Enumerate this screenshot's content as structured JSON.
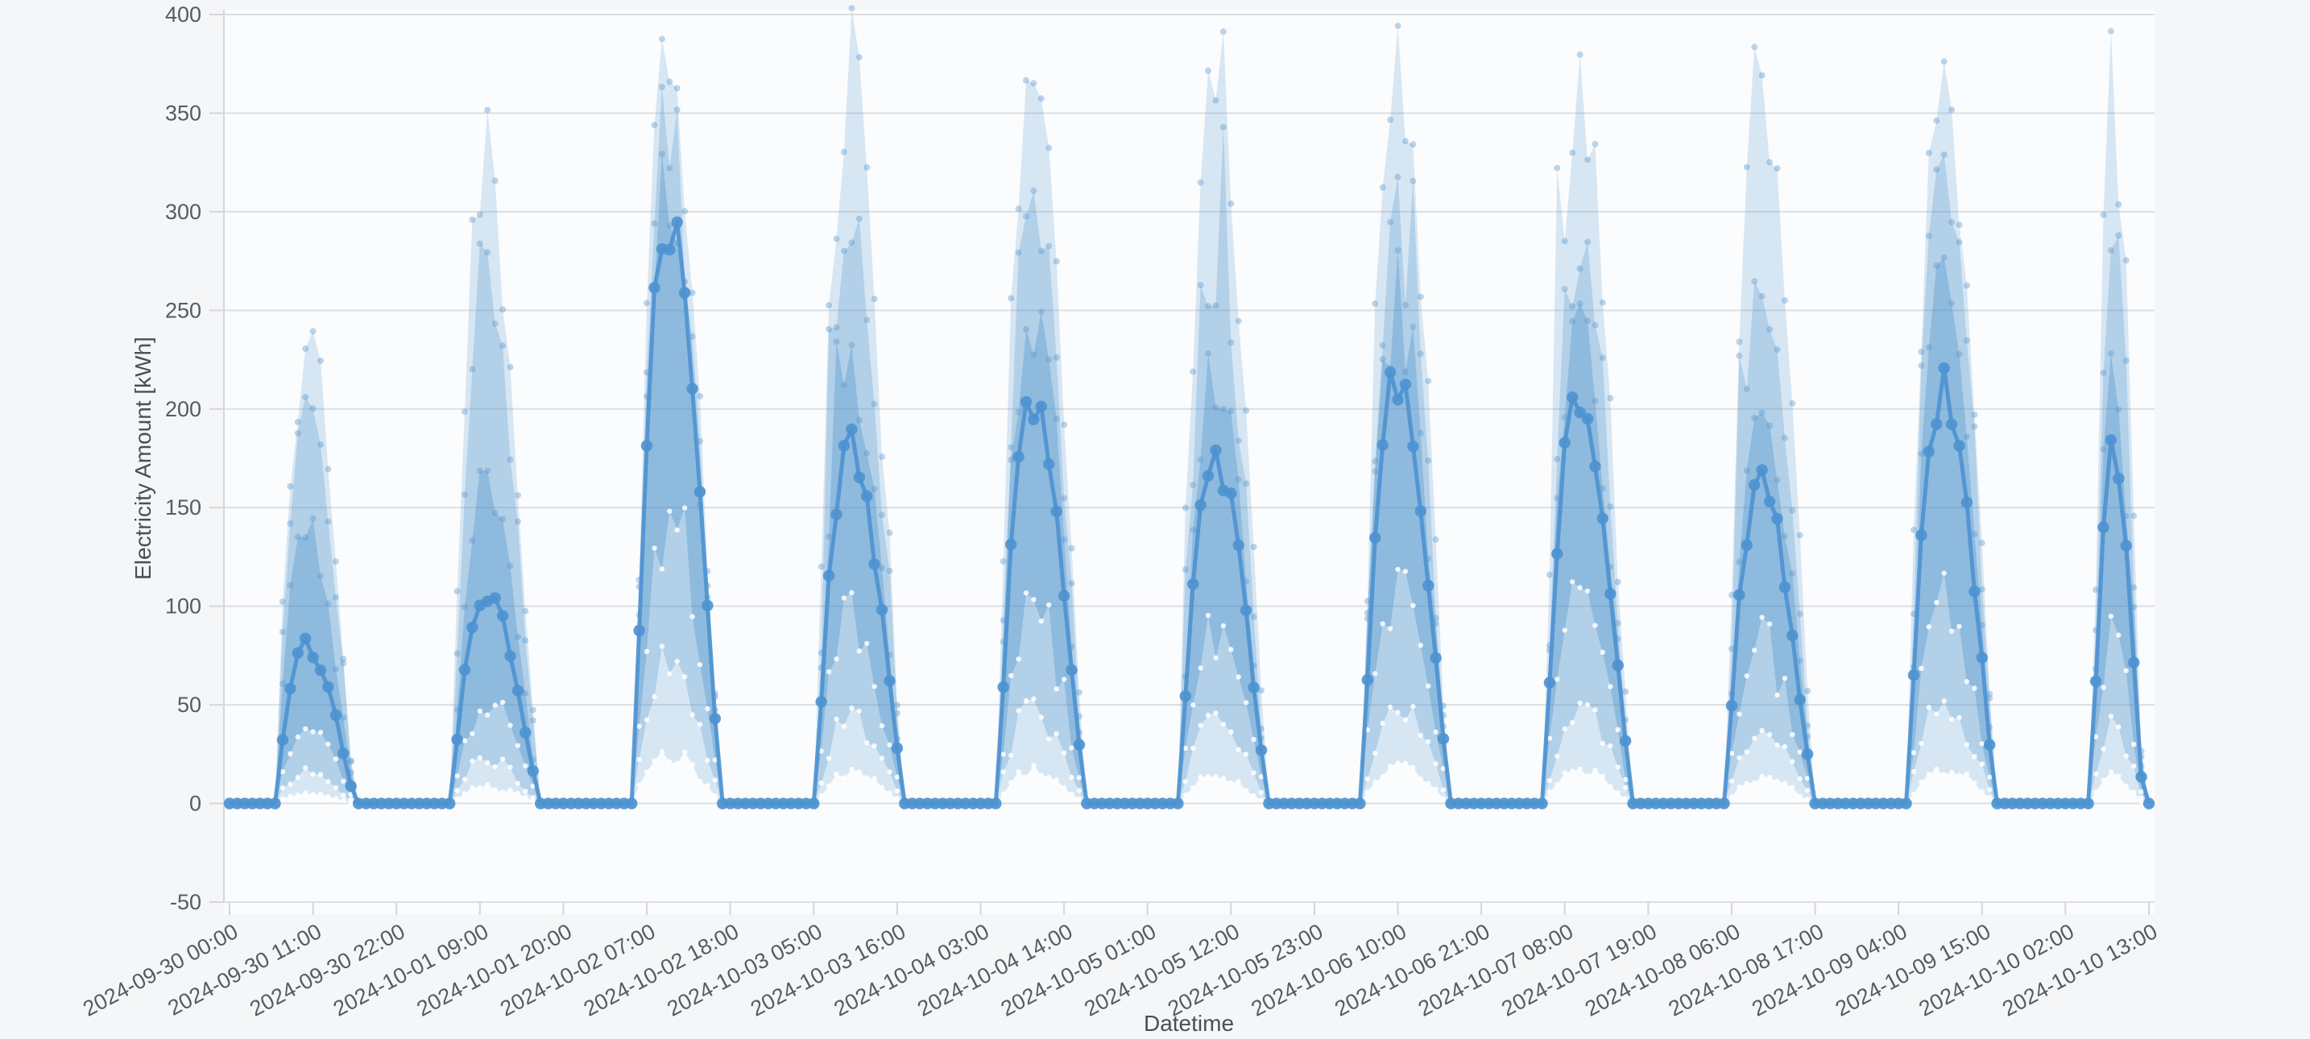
{
  "chart_data": {
    "type": "line",
    "title": "",
    "xlabel": "Datetime",
    "ylabel": "Electricity Amount [kWh]",
    "legend": "none",
    "grid": true,
    "ylim": [
      -50,
      400
    ],
    "y_ticks": [
      400,
      350,
      300,
      250,
      200,
      150,
      100,
      50,
      0,
      -50
    ],
    "x_start": "2024-09-30 00:00",
    "x_end": "2024-10-10 13:00",
    "sampling_hours": 1,
    "hours_total": 253,
    "x_tick_interval_hours": 11,
    "x_tick_labels": [
      "2024-09-30 00:00",
      "2024-09-30 11:00",
      "2024-09-30 22:00",
      "2024-10-01 09:00",
      "2024-10-01 20:00",
      "2024-10-02 07:00",
      "2024-10-02 18:00",
      "2024-10-03 05:00",
      "2024-10-03 16:00",
      "2024-10-04 03:00",
      "2024-10-04 14:00",
      "2024-10-05 01:00",
      "2024-10-05 12:00",
      "2024-10-05 23:00",
      "2024-10-06 10:00",
      "2024-10-06 21:00",
      "2024-10-07 08:00",
      "2024-10-07 19:00",
      "2024-10-08 06:00",
      "2024-10-08 17:00",
      "2024-10-09 04:00",
      "2024-10-09 15:00",
      "2024-10-10 02:00",
      "2024-10-10 13:00"
    ],
    "series_structure": {
      "main": "observed electricity amount, line with round markers, hourly",
      "bands": "three nested uncertainty bands (outer/middle/inner), dotted edges, zero at night"
    },
    "days": [
      {
        "date": "2024-09-30",
        "main": 80,
        "band_tops": [
          232,
          215,
          142
        ],
        "band_bottoms": [
          5,
          16,
          40
        ],
        "window": [
          6.2,
          16.6
        ]
      },
      {
        "date": "2024-10-01",
        "main": 105,
        "band_tops": [
          323,
          268,
          168
        ],
        "band_bottoms": [
          8,
          22,
          52
        ],
        "window": [
          5.4,
          16.9
        ]
      },
      {
        "date": "2024-10-02",
        "main": 297,
        "band_tops": [
          378,
          345,
          312
        ],
        "band_bottoms": [
          26,
          70,
          150
        ],
        "window": [
          5.4,
          16.9
        ]
      },
      {
        "date": "2024-10-03",
        "main": 180,
        "band_tops": [
          370,
          283,
          228
        ],
        "band_bottoms": [
          15,
          42,
          90
        ],
        "window": [
          5.4,
          16.9
        ]
      },
      {
        "date": "2024-10-04",
        "main": 205,
        "band_tops": [
          377,
          302,
          252
        ],
        "band_bottoms": [
          17,
          47,
          100
        ],
        "window": [
          5.4,
          16.9
        ]
      },
      {
        "date": "2024-10-05",
        "main": 175,
        "band_tops": [
          372,
          283,
          217
        ],
        "band_bottoms": [
          14,
          40,
          86
        ],
        "window": [
          5.4,
          16.9
        ]
      },
      {
        "date": "2024-10-06",
        "main": 215,
        "band_tops": [
          372,
          299,
          259
        ],
        "band_bottoms": [
          18,
          50,
          106
        ],
        "window": [
          5.4,
          16.9
        ]
      },
      {
        "date": "2024-10-07",
        "main": 205,
        "band_tops": [
          373,
          291,
          248
        ],
        "band_bottoms": [
          17,
          47,
          100
        ],
        "window": [
          5.4,
          16.9
        ]
      },
      {
        "date": "2024-10-08",
        "main": 163,
        "band_tops": [
          371,
          272,
          207
        ],
        "band_bottoms": [
          13,
          37,
          80
        ],
        "window": [
          5.4,
          16.9
        ]
      },
      {
        "date": "2024-10-09",
        "main": 210,
        "band_tops": [
          368,
          326,
          258
        ],
        "band_bottoms": [
          18,
          49,
          104
        ],
        "window": [
          5.4,
          16.9
        ]
      },
      {
        "date": "2024-10-10",
        "main": 178,
        "band_tops": [
          363,
          290,
          227
        ],
        "band_bottoms": [
          15,
          41,
          88
        ],
        "window": [
          5.6,
          12.3
        ]
      }
    ],
    "colors": {
      "page_bg": "#f5f6f7",
      "plot_bg": "#fbfcfd",
      "grid": "#dcdee1",
      "axis_line": "#d4d6d9",
      "tick_text": "#565b61",
      "title_text": "#4a4f54",
      "main_line": "#4e93d0",
      "band_rgb": "77,146,204",
      "band_alphas": [
        0.2,
        0.27,
        0.36
      ],
      "edge_dot": "rgba(93,152,205,0.40)",
      "low_edge_dot": "rgba(255,255,255,0.85)"
    }
  }
}
